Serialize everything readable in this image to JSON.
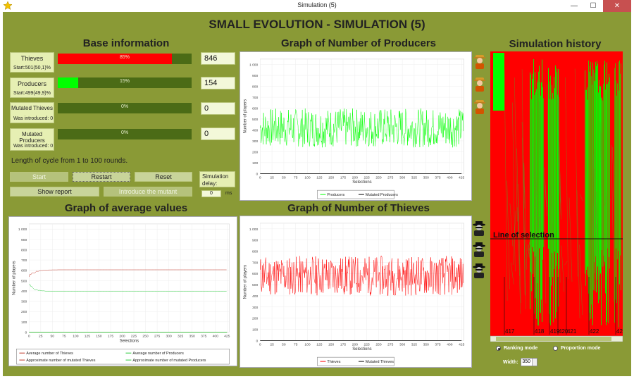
{
  "window": {
    "title": "Simulation (5)"
  },
  "app_title": "SMALL EVOLUTION - SIMULATION (5)",
  "sections": {
    "base_info": "Base information",
    "producers_graph": "Graph of Number of Producers",
    "history": "Simulation history",
    "average_graph": "Graph of average values",
    "thieves_graph": "Graph of Number of Thieves"
  },
  "rows": [
    {
      "name": "Thieves",
      "sub": "Start:501(50,1)%",
      "percent_label": "85%",
      "fraction": 0.85,
      "color": "#ff0000",
      "count": "846"
    },
    {
      "name": "Producers",
      "sub": "Start:499(49,9)%",
      "percent_label": "15%",
      "fraction": 0.15,
      "color": "#00ff00",
      "count": "154"
    },
    {
      "name": "Mutated Thieves",
      "sub": "Was introduced: 0",
      "percent_label": "0%",
      "fraction": 0,
      "color": "#ff0000",
      "count": "0"
    },
    {
      "name": "Mutated Producers",
      "sub": "Was introduced: 0",
      "percent_label": "0%",
      "fraction": 0,
      "color": "#00ff00",
      "count": "0"
    }
  ],
  "cycle_note": "Length of cycle from 1 to 100 rounds.",
  "buttons": {
    "start": "Start",
    "restart": "Restart",
    "reset": "Reset",
    "show_report": "Show report",
    "introduce_mutant": "Introduce the mutant"
  },
  "delay": {
    "label": "Simulation delay:",
    "value": "0",
    "unit": "ms"
  },
  "history": {
    "line_label": "Line of selection",
    "markers": [
      "417",
      "418",
      "419",
      "420",
      "421",
      "422",
      "42"
    ],
    "mode_ranking": "Ranking mode",
    "mode_proportion": "Proportion mode",
    "width_label": "Width:",
    "width_value": "350"
  },
  "colors": {
    "thieves": "#ff0000",
    "producers": "#00ff00",
    "panel": "#8a9a36"
  },
  "icons": {
    "producer": "farmer-icon",
    "thief": "thief-icon"
  },
  "chart_data": [
    {
      "type": "line",
      "id": "producers",
      "xlabel": "Selections",
      "ylabel": "Number of players",
      "x_ticks": [
        0,
        25,
        50,
        75,
        100,
        125,
        150,
        175,
        200,
        225,
        250,
        275,
        300,
        325,
        350,
        375,
        400,
        425
      ],
      "y_ticks": [
        "0",
        "100",
        "200",
        "300",
        "400",
        "500",
        "600",
        "700",
        "800",
        "900",
        "1 000"
      ],
      "xlim": [
        0,
        430
      ],
      "ylim": [
        0,
        1050
      ],
      "series": [
        {
          "name": "Producers",
          "color": "#00ff00",
          "mean": 420,
          "spread": 180,
          "n": 430,
          "seed": 7
        },
        {
          "name": "Mutated Producers",
          "color": "#000000",
          "constant": 0
        }
      ]
    },
    {
      "type": "line",
      "id": "thieves",
      "xlabel": "Selections",
      "ylabel": "Number of players",
      "x_ticks": [
        0,
        25,
        50,
        75,
        100,
        125,
        150,
        175,
        200,
        225,
        250,
        275,
        300,
        325,
        350,
        375,
        400,
        425
      ],
      "y_ticks": [
        "0",
        "100",
        "200",
        "300",
        "400",
        "500",
        "600",
        "700",
        "800",
        "900",
        "1 000"
      ],
      "xlim": [
        0,
        430
      ],
      "ylim": [
        0,
        1050
      ],
      "series": [
        {
          "name": "Thieves",
          "color": "#ff0000",
          "mean": 580,
          "spread": 180,
          "n": 430,
          "seed": 11
        },
        {
          "name": "Mutated Thieves",
          "color": "#000000",
          "constant": 0
        }
      ]
    },
    {
      "type": "line",
      "id": "average",
      "xlabel": "Selections",
      "ylabel": "Number of players",
      "x_ticks": [
        0,
        25,
        50,
        75,
        100,
        125,
        150,
        175,
        200,
        225,
        250,
        275,
        300,
        325,
        350,
        375,
        400,
        425
      ],
      "y_ticks": [
        "0",
        "100",
        "200",
        "300",
        "400",
        "500",
        "600",
        "700",
        "800",
        "900",
        "1 000"
      ],
      "xlim": [
        0,
        430
      ],
      "ylim": [
        0,
        1050
      ],
      "series": [
        {
          "name": "Average number of Thieves",
          "color": "#c0392b",
          "settle": 605,
          "start": 540
        },
        {
          "name": "Average number of Producers",
          "color": "#2ecc40",
          "settle": 395,
          "start": 460
        },
        {
          "name": "Approximate number of mutated Thieves",
          "color": "#c0392b",
          "constant": 0
        },
        {
          "name": "Approximate number of mutated Producers",
          "color": "#2ecc40",
          "constant": 0
        }
      ]
    }
  ]
}
